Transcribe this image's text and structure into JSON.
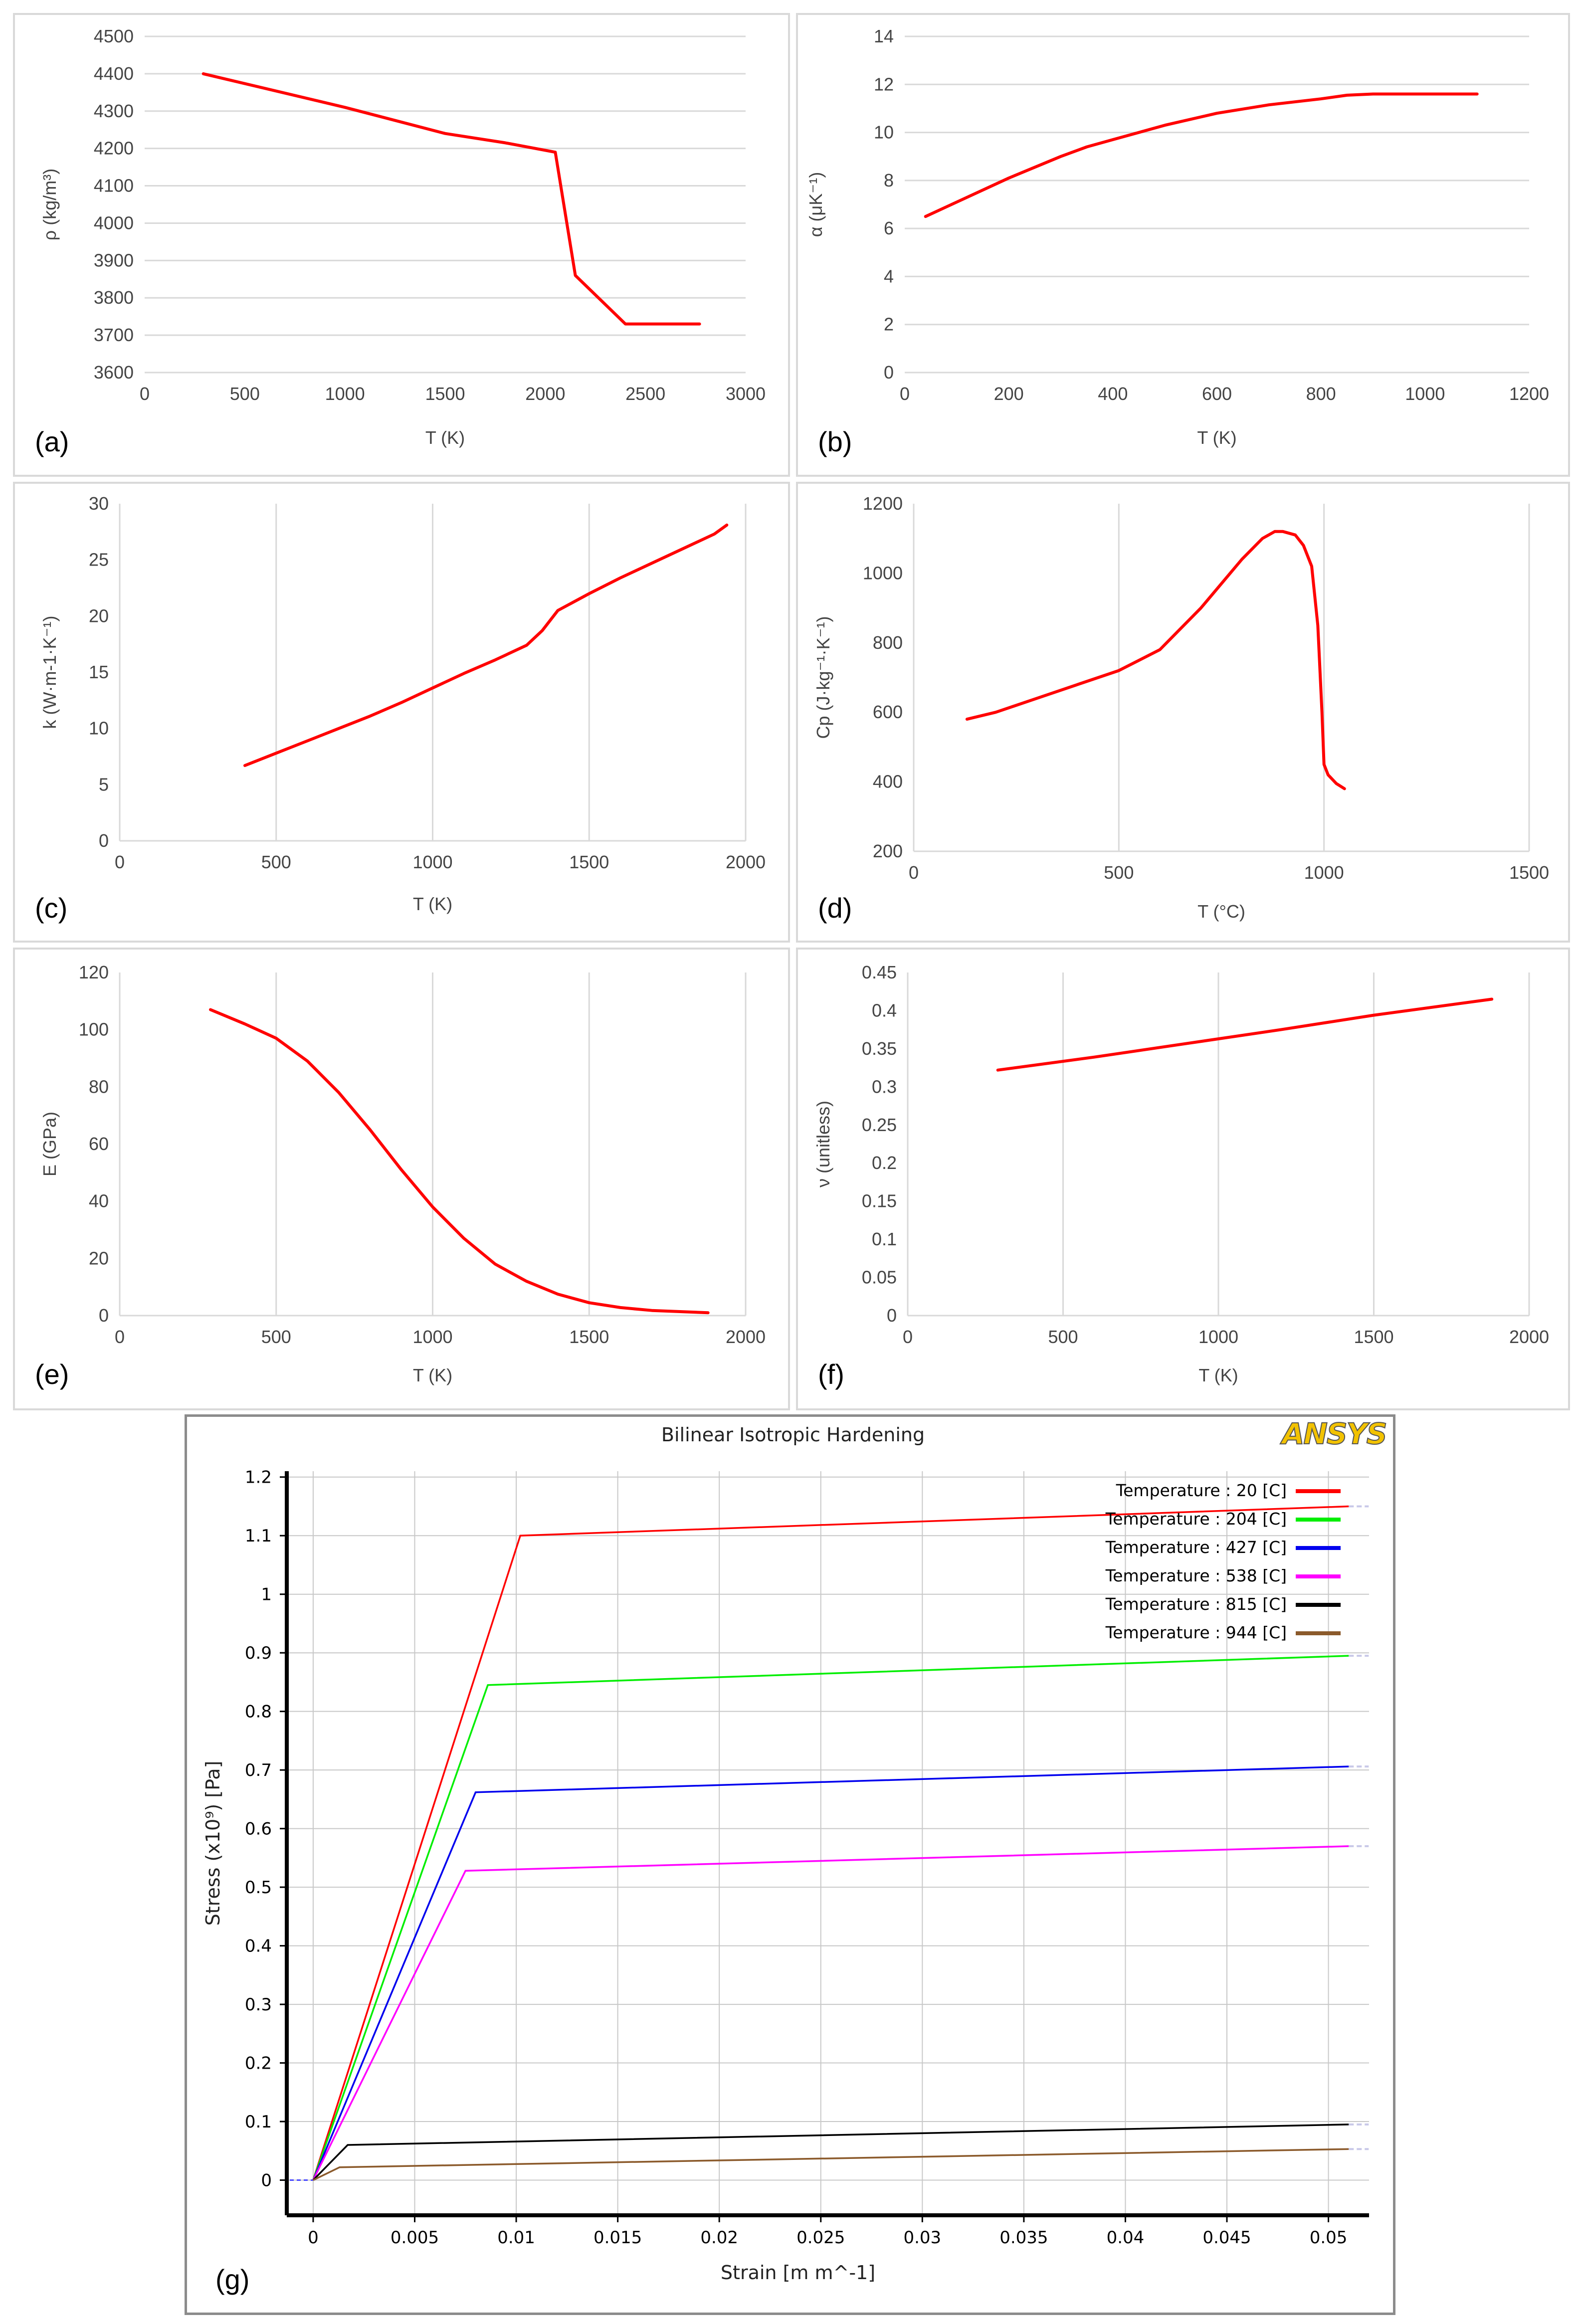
{
  "chart_data": [
    {
      "id": "a",
      "type": "line",
      "panel_label": "(a)",
      "xlabel": "T (K)",
      "ylabel": "ρ (kg/m³)",
      "xlim": [
        0,
        3000
      ],
      "ylim": [
        3600,
        4500
      ],
      "xticks": [
        0,
        500,
        1000,
        1500,
        2000,
        2500,
        3000
      ],
      "yticks": [
        3600,
        3700,
        3800,
        3900,
        4000,
        4100,
        4200,
        4300,
        4400,
        4500
      ],
      "grid": "horizontal",
      "series": [
        {
          "name": "density",
          "color": "#ff0000",
          "x": [
            293,
            1000,
            1500,
            1800,
            2050,
            2150,
            2400,
            2770
          ],
          "y": [
            4400,
            4310,
            4240,
            4215,
            4190,
            3860,
            3730,
            3730
          ]
        }
      ]
    },
    {
      "id": "b",
      "type": "line",
      "panel_label": "(b)",
      "xlabel": "T (K)",
      "ylabel": "α (μK⁻¹)",
      "xlim": [
        0,
        1200
      ],
      "ylim": [
        0,
        14
      ],
      "xticks": [
        0,
        200,
        400,
        600,
        800,
        1000,
        1200
      ],
      "yticks": [
        0,
        2,
        4,
        6,
        8,
        10,
        12,
        14
      ],
      "grid": "horizontal",
      "series": [
        {
          "name": "thermal expansion",
          "color": "#ff0000",
          "x": [
            40,
            100,
            200,
            300,
            350,
            400,
            500,
            600,
            700,
            800,
            850,
            900,
            1000,
            1100
          ],
          "y": [
            6.5,
            7.1,
            8.1,
            9.0,
            9.4,
            9.7,
            10.3,
            10.8,
            11.15,
            11.4,
            11.55,
            11.6,
            11.6,
            11.6
          ]
        }
      ]
    },
    {
      "id": "c",
      "type": "line",
      "panel_label": "(c)",
      "xlabel": "T (K)",
      "ylabel": "k (W·m-1·K⁻¹)",
      "xlim": [
        0,
        2000
      ],
      "ylim": [
        0,
        30
      ],
      "xticks": [
        0,
        500,
        1000,
        1500,
        2000
      ],
      "yticks": [
        0,
        5,
        10,
        15,
        20,
        25,
        30
      ],
      "grid": "vertical",
      "series": [
        {
          "name": "thermal conductivity",
          "color": "#ff0000",
          "x": [
            400,
            500,
            600,
            700,
            800,
            900,
            1000,
            1100,
            1200,
            1300,
            1350,
            1400,
            1500,
            1600,
            1700,
            1800,
            1900,
            1940
          ],
          "y": [
            6.7,
            7.8,
            8.9,
            10.0,
            11.1,
            12.3,
            13.6,
            14.9,
            16.1,
            17.4,
            18.7,
            20.5,
            22.0,
            23.4,
            24.7,
            26.0,
            27.3,
            28.1
          ]
        }
      ]
    },
    {
      "id": "d",
      "type": "line",
      "panel_label": "(d)",
      "xlabel": "T (°C)",
      "ylabel": "Cp (J·kg⁻¹·K⁻¹)",
      "xlim": [
        0,
        1500
      ],
      "ylim": [
        200,
        1200
      ],
      "xticks": [
        0,
        500,
        1000,
        1500
      ],
      "yticks": [
        200,
        400,
        600,
        800,
        1000,
        1200
      ],
      "grid": "vertical",
      "series": [
        {
          "name": "specific heat",
          "color": "#ff0000",
          "x": [
            130,
            200,
            300,
            400,
            500,
            600,
            700,
            750,
            800,
            850,
            880,
            900,
            930,
            950,
            970,
            985,
            995,
            1000,
            1010,
            1030,
            1050
          ],
          "y": [
            580,
            600,
            640,
            680,
            720,
            780,
            900,
            970,
            1040,
            1100,
            1120,
            1120,
            1110,
            1080,
            1020,
            850,
            600,
            450,
            420,
            395,
            380
          ]
        }
      ]
    },
    {
      "id": "e",
      "type": "line",
      "panel_label": "(e)",
      "xlabel": "T (K)",
      "ylabel": "E (GPa)",
      "xlim": [
        0,
        2000
      ],
      "ylim": [
        0,
        120
      ],
      "xticks": [
        0,
        500,
        1000,
        1500,
        2000
      ],
      "yticks": [
        0,
        20,
        40,
        60,
        80,
        100,
        120
      ],
      "grid": "vertical",
      "series": [
        {
          "name": "Young's modulus",
          "color": "#ff0000",
          "x": [
            290,
            400,
            500,
            600,
            700,
            800,
            900,
            1000,
            1100,
            1200,
            1300,
            1400,
            1500,
            1600,
            1700,
            1880
          ],
          "y": [
            107,
            102,
            97,
            89,
            78,
            65,
            51,
            38,
            27,
            18,
            12,
            7.5,
            4.5,
            2.8,
            1.8,
            1
          ]
        }
      ]
    },
    {
      "id": "f",
      "type": "line",
      "panel_label": "(f)",
      "xlabel": "T (K)",
      "ylabel": "ν (unitless)",
      "xlim": [
        0,
        2000
      ],
      "ylim": [
        0,
        0.45
      ],
      "xticks": [
        0,
        500,
        1000,
        1500,
        2000
      ],
      "yticks": [
        0,
        0.05,
        0.1,
        0.15,
        0.2,
        0.25,
        0.3,
        0.35,
        0.4,
        0.45
      ],
      "grid": "vertical",
      "series": [
        {
          "name": "Poisson's ratio",
          "color": "#ff0000",
          "x": [
            290,
            600,
            900,
            1200,
            1500,
            1880
          ],
          "y": [
            0.322,
            0.339,
            0.357,
            0.375,
            0.394,
            0.415
          ]
        }
      ]
    },
    {
      "id": "g",
      "type": "line",
      "panel_label": "(g)",
      "title": "Bilinear Isotropic Hardening",
      "logo": "ANSYS",
      "xlabel": "Strain  [m m^-1]",
      "ylabel": "Stress  (x10⁹)  [Pa]",
      "xlim": [
        -0.0013,
        0.052
      ],
      "ylim": [
        -0.06,
        1.21
      ],
      "xticks": [
        0,
        0.005,
        0.01,
        0.015,
        0.02,
        0.025,
        0.03,
        0.035,
        0.04,
        0.045,
        0.05
      ],
      "xtick_labels": [
        "0",
        "0.005",
        "0.01",
        "0.015",
        "0.02",
        "0.025",
        "0.03",
        "0.035",
        "0.04",
        "0.045",
        "0.05"
      ],
      "yticks": [
        0,
        0.1,
        0.2,
        0.3,
        0.4,
        0.5,
        0.6,
        0.7,
        0.8,
        0.9,
        1,
        1.1,
        1.2
      ],
      "ytick_labels": [
        "0",
        "0.1",
        "0.2",
        "0.3",
        "0.4",
        "0.5",
        "0.6",
        "0.7",
        "0.8",
        "0.9",
        "1",
        "1.1",
        "1.2"
      ],
      "grid": "both",
      "legend_position": "top-right",
      "series": [
        {
          "name": "Temperature : 20 [C]",
          "color": "#ff0000",
          "x": [
            0,
            0.0102,
            0.051
          ],
          "y": [
            0,
            1.1,
            1.15
          ]
        },
        {
          "name": "Temperature : 204 [C]",
          "color": "#00ee00",
          "x": [
            0,
            0.0086,
            0.051
          ],
          "y": [
            0,
            0.845,
            0.895
          ]
        },
        {
          "name": "Temperature : 427 [C]",
          "color": "#0000ee",
          "x": [
            0,
            0.008,
            0.051
          ],
          "y": [
            0,
            0.662,
            0.706
          ]
        },
        {
          "name": "Temperature : 538 [C]",
          "color": "#ff00ff",
          "x": [
            0,
            0.0075,
            0.051
          ],
          "y": [
            0,
            0.528,
            0.57
          ]
        },
        {
          "name": "Temperature : 815 [C]",
          "color": "#000000",
          "x": [
            0,
            0.0017,
            0.051
          ],
          "y": [
            0,
            0.06,
            0.095
          ]
        },
        {
          "name": "Temperature : 944 [C]",
          "color": "#8b5a2b",
          "x": [
            0,
            0.0013,
            0.051
          ],
          "y": [
            0,
            0.022,
            0.053
          ]
        }
      ]
    }
  ]
}
